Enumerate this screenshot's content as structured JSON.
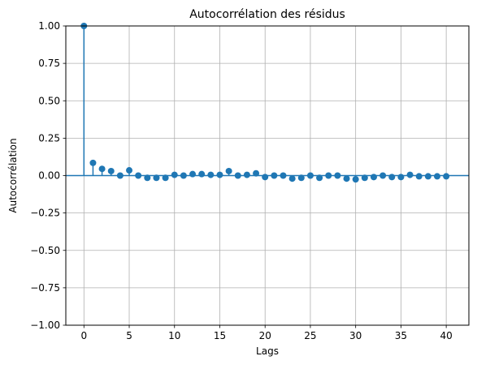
{
  "chart_data": {
    "type": "scatter",
    "subtype": "stem",
    "title": "Autocorrélation des résidus",
    "xlabel": "Lags",
    "ylabel": "Autocorrélation",
    "xlim": [
      -2,
      42.5
    ],
    "ylim": [
      -1.0,
      1.0
    ],
    "xticks": [
      0,
      5,
      10,
      15,
      20,
      25,
      30,
      35,
      40
    ],
    "yticks": [
      -1.0,
      -0.75,
      -0.5,
      -0.25,
      0.0,
      0.25,
      0.5,
      0.75,
      1.0
    ],
    "xtick_labels": [
      "0",
      "5",
      "10",
      "15",
      "20",
      "25",
      "30",
      "35",
      "40"
    ],
    "ytick_labels": [
      "−1.00",
      "−0.75",
      "−0.50",
      "−0.25",
      "0.00",
      "0.25",
      "0.50",
      "0.75",
      "1.00"
    ],
    "grid": true,
    "color": "#1f77b4",
    "lags": [
      0,
      1,
      2,
      3,
      4,
      5,
      6,
      7,
      8,
      9,
      10,
      11,
      12,
      13,
      14,
      15,
      16,
      17,
      18,
      19,
      20,
      21,
      22,
      23,
      24,
      25,
      26,
      27,
      28,
      29,
      30,
      31,
      32,
      33,
      34,
      35,
      36,
      37,
      38,
      39,
      40
    ],
    "values": [
      1.0,
      0.085,
      0.045,
      0.03,
      0.0,
      0.035,
      0.0,
      -0.015,
      -0.015,
      -0.015,
      0.005,
      0.0,
      0.01,
      0.01,
      0.005,
      0.005,
      0.03,
      0.0,
      0.005,
      0.015,
      -0.01,
      0.0,
      0.0,
      -0.02,
      -0.015,
      0.0,
      -0.015,
      0.0,
      0.0,
      -0.02,
      -0.025,
      -0.015,
      -0.01,
      0.0,
      -0.01,
      -0.01,
      0.005,
      -0.005,
      -0.005,
      -0.005,
      -0.005
    ]
  }
}
